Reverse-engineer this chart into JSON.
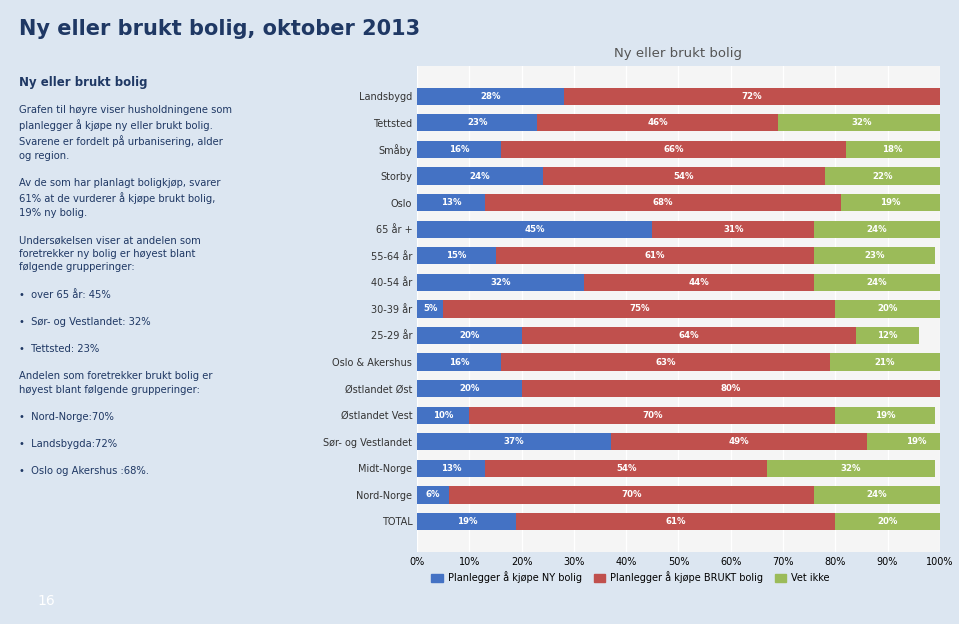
{
  "title": "Ny eller brukt bolig",
  "main_title": "Ny eller brukt bolig, oktober 2013",
  "categories": [
    "Landsbygd",
    "Tettsted",
    "Småby",
    "Storby",
    "Oslo",
    "65 år +",
    "55-64 år",
    "40-54 år",
    "30-39 år",
    "25-29 år",
    "Oslo & Akershus",
    "Østlandet Øst",
    "Østlandet Vest",
    "Sør- og Vestlandet",
    "Midt-Norge",
    "Nord-Norge",
    "TOTAL"
  ],
  "ny": [
    28,
    23,
    16,
    24,
    13,
    45,
    15,
    32,
    5,
    20,
    16,
    20,
    10,
    37,
    13,
    6,
    19
  ],
  "brukt": [
    72,
    46,
    66,
    54,
    68,
    31,
    61,
    44,
    75,
    64,
    63,
    80,
    70,
    49,
    54,
    70,
    61
  ],
  "vet_ikke": [
    0,
    32,
    18,
    22,
    19,
    24,
    23,
    24,
    20,
    12,
    21,
    0,
    19,
    19,
    32,
    24,
    20
  ],
  "color_ny": "#4472C4",
  "color_brukt": "#C0504D",
  "color_vet_ikke": "#9BBB59",
  "legend_ny": "Planlegger å kjøpe NY bolig",
  "legend_brukt": "Planlegger å kjøpe BRUKT bolig",
  "legend_vet_ikke": "Vet ikke",
  "left_panel_bg": "#dce6f1",
  "chart_bg": "#f5f5f5",
  "page_bg": "#dce6f1",
  "bar_height": 0.65,
  "left_text_title": "Ny eller brukt bolig",
  "page_number": "16"
}
